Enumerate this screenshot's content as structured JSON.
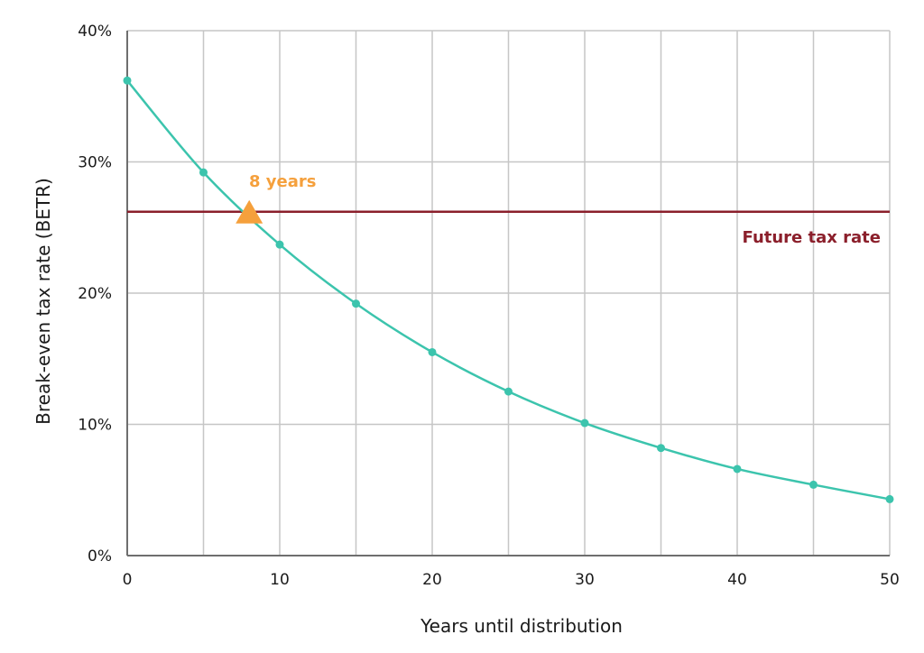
{
  "chart_data": {
    "type": "line",
    "xlabel": "Years until distribution",
    "ylabel": "Break-even tax rate (BETR)",
    "xlim": [
      0,
      50
    ],
    "ylim": [
      0,
      40
    ],
    "x_ticks": [
      "0",
      "10",
      "20",
      "30",
      "40",
      "50"
    ],
    "x_tick_values": [
      0,
      10,
      20,
      30,
      40,
      50
    ],
    "y_ticks": [
      "0%",
      "10%",
      "20%",
      "30%",
      "40%"
    ],
    "y_tick_values": [
      0,
      10,
      20,
      30,
      40
    ],
    "x_grid_step": 5,
    "grid": true,
    "series": [
      {
        "color": "#3cc4ad",
        "x": [
          0,
          5,
          10,
          15,
          20,
          25,
          30,
          35,
          40,
          45,
          50
        ],
        "values": [
          36.2,
          29.2,
          23.7,
          19.2,
          15.5,
          12.5,
          10.1,
          8.2,
          6.6,
          5.4,
          4.3
        ]
      }
    ],
    "reference_line": {
      "label": "Future tax rate",
      "y": 26.2,
      "color": "#8b1f2b"
    },
    "annotation": {
      "label": "8 years",
      "x": 8,
      "y": 26.2,
      "color": "#f5a03c",
      "marker": "triangle"
    }
  }
}
